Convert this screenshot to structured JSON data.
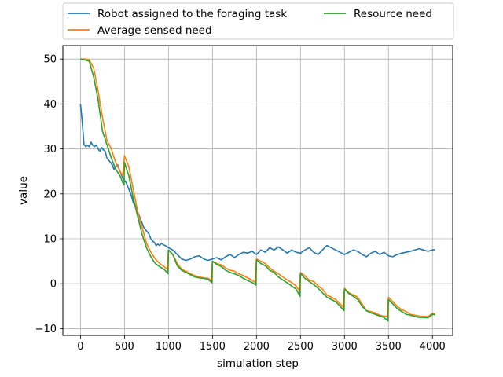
{
  "chart_data": {
    "type": "line",
    "xlabel": "simulation step",
    "ylabel": "value",
    "xlim": [
      -200,
      4230
    ],
    "ylim": [
      -11.5,
      53
    ],
    "x_ticks": [
      0,
      500,
      1000,
      1500,
      2000,
      2500,
      3000,
      3500,
      4000
    ],
    "y_ticks": [
      -10,
      0,
      10,
      20,
      30,
      40,
      50
    ],
    "grid": true,
    "legend_position": "top-outside, 2 columns",
    "series": [
      {
        "name": "Robot assigned to the foraging task",
        "color": "#1f77b4",
        "x": [
          0,
          20,
          40,
          60,
          80,
          100,
          120,
          140,
          160,
          180,
          200,
          220,
          240,
          260,
          280,
          300,
          320,
          340,
          360,
          380,
          400,
          420,
          440,
          460,
          480,
          500,
          520,
          540,
          560,
          580,
          600,
          620,
          640,
          660,
          680,
          700,
          720,
          740,
          760,
          780,
          800,
          820,
          840,
          860,
          880,
          900,
          920,
          940,
          960,
          980,
          1000,
          1050,
          1100,
          1150,
          1200,
          1250,
          1300,
          1350,
          1400,
          1450,
          1500,
          1550,
          1600,
          1650,
          1700,
          1750,
          1800,
          1850,
          1900,
          1950,
          2000,
          2050,
          2100,
          2150,
          2200,
          2250,
          2300,
          2350,
          2400,
          2450,
          2500,
          2550,
          2600,
          2650,
          2700,
          2750,
          2800,
          2850,
          2900,
          2950,
          3000,
          3050,
          3100,
          3150,
          3200,
          3250,
          3300,
          3350,
          3400,
          3450,
          3500,
          3550,
          3600,
          3650,
          3700,
          3750,
          3800,
          3850,
          3900,
          3950,
          4000,
          4030
        ],
        "values": [
          40,
          36,
          31,
          30.5,
          30.8,
          30.5,
          31.5,
          30.8,
          30.5,
          30.9,
          30,
          29.5,
          30.3,
          29.8,
          29.5,
          28,
          27.5,
          27,
          26.5,
          25.5,
          26,
          26.5,
          25.5,
          24.5,
          23.5,
          23,
          22.5,
          21.5,
          20.5,
          19.5,
          18,
          17.5,
          16.5,
          15.5,
          14.5,
          13.5,
          12.5,
          12,
          11.5,
          11,
          10,
          9.5,
          9.2,
          8.5,
          8.8,
          8.5,
          9,
          8.7,
          8.5,
          8.3,
          8,
          7.5,
          6.5,
          5.5,
          5.2,
          5.5,
          6,
          6.2,
          5.5,
          5.2,
          5.5,
          5.8,
          5.3,
          6,
          6.5,
          5.8,
          6.5,
          7,
          6.8,
          7.2,
          6.5,
          7.5,
          7,
          8,
          7.5,
          8.2,
          7.5,
          6.8,
          7.5,
          7,
          6.8,
          7.5,
          8,
          7,
          6.5,
          7.5,
          8.5,
          8,
          7.5,
          7,
          6.5,
          7,
          7.5,
          7.2,
          6.5,
          6,
          6.8,
          7.2,
          6.5,
          7,
          6.2,
          6,
          6.5,
          6.8,
          7,
          7.2,
          7.5,
          7.8,
          7.5,
          7.2,
          7.5,
          7.6
        ]
      },
      {
        "name": "Average sensed need",
        "color": "#ff7f0e",
        "x": [
          0,
          50,
          100,
          150,
          200,
          250,
          300,
          350,
          400,
          450,
          480,
          500,
          550,
          600,
          650,
          700,
          750,
          800,
          850,
          900,
          950,
          985,
          1000,
          1050,
          1100,
          1150,
          1200,
          1250,
          1300,
          1350,
          1400,
          1450,
          1485,
          1500,
          1550,
          1600,
          1650,
          1700,
          1750,
          1800,
          1850,
          1900,
          1950,
          1985,
          2000,
          2050,
          2100,
          2150,
          2200,
          2250,
          2300,
          2350,
          2400,
          2450,
          2485,
          2500,
          2550,
          2600,
          2650,
          2700,
          2750,
          2800,
          2850,
          2900,
          2950,
          2985,
          3000,
          3050,
          3100,
          3150,
          3200,
          3250,
          3300,
          3350,
          3400,
          3450,
          3485,
          3500,
          3550,
          3600,
          3650,
          3700,
          3750,
          3800,
          3850,
          3900,
          3950,
          4000,
          4030
        ],
        "values": [
          50,
          50,
          49.8,
          48,
          43,
          37,
          32,
          30,
          27,
          25,
          24,
          28.5,
          26,
          21,
          16,
          12.5,
          9,
          7,
          5.5,
          4.5,
          3.8,
          3.2,
          7.5,
          6.5,
          4.5,
          3.2,
          2.8,
          2.2,
          1.8,
          1.5,
          1.3,
          1.2,
          0.8,
          5,
          4.5,
          4.2,
          3.5,
          3,
          2.8,
          2.2,
          1.8,
          1.3,
          0.8,
          0.3,
          5.5,
          5,
          4.5,
          3.5,
          2.8,
          2.2,
          1.5,
          0.8,
          0.3,
          -0.5,
          -1.5,
          2.5,
          1.8,
          0.8,
          0.5,
          -0.5,
          -1.2,
          -2.5,
          -3,
          -3.5,
          -4.5,
          -5.2,
          -1,
          -2,
          -2.5,
          -3,
          -4.5,
          -6,
          -6.2,
          -6.5,
          -7,
          -7.2,
          -7.3,
          -3,
          -4,
          -5,
          -5.8,
          -6.2,
          -6.8,
          -7,
          -7.2,
          -7.3,
          -7.3,
          -6.6,
          -6.7
        ]
      },
      {
        "name": "Resource need",
        "color": "#2ca02c",
        "x": [
          0,
          50,
          100,
          150,
          200,
          250,
          300,
          350,
          400,
          450,
          480,
          495,
          500,
          550,
          600,
          650,
          700,
          750,
          800,
          850,
          900,
          950,
          985,
          995,
          1000,
          1050,
          1100,
          1150,
          1200,
          1250,
          1300,
          1350,
          1400,
          1450,
          1495,
          1500,
          1550,
          1600,
          1650,
          1700,
          1750,
          1800,
          1850,
          1900,
          1950,
          1995,
          2000,
          2050,
          2100,
          2150,
          2200,
          2250,
          2300,
          2350,
          2400,
          2450,
          2495,
          2500,
          2550,
          2600,
          2650,
          2700,
          2750,
          2800,
          2850,
          2900,
          2950,
          2995,
          3000,
          3050,
          3100,
          3150,
          3200,
          3250,
          3300,
          3350,
          3400,
          3450,
          3495,
          3500,
          3550,
          3600,
          3650,
          3700,
          3750,
          3800,
          3850,
          3900,
          3950,
          4000,
          4030
        ],
        "values": [
          50,
          49.8,
          49.5,
          46,
          41,
          34,
          31,
          28,
          25.5,
          24,
          22.5,
          22,
          27,
          24,
          19,
          15,
          11,
          8,
          6,
          4.5,
          3.8,
          3.2,
          2.5,
          2.2,
          7.5,
          6.5,
          4,
          3,
          2.5,
          2,
          1.5,
          1.3,
          1.2,
          1,
          0.2,
          5,
          4.3,
          3.8,
          3,
          2.5,
          2.2,
          1.8,
          1.2,
          0.7,
          0.3,
          -0.3,
          5.3,
          4.5,
          4,
          3,
          2.5,
          1.5,
          0.8,
          0.2,
          -0.5,
          -1.2,
          -2.8,
          2.3,
          1.2,
          0.5,
          -0.2,
          -1,
          -2,
          -3,
          -3.5,
          -4,
          -5,
          -6,
          -1.2,
          -2.2,
          -2.8,
          -3.5,
          -5,
          -6,
          -6.5,
          -6.8,
          -7.2,
          -7.5,
          -8.3,
          -3.5,
          -4.5,
          -5.5,
          -6.2,
          -6.8,
          -7,
          -7.3,
          -7.5,
          -7.5,
          -7.6,
          -6.8,
          -6.9
        ]
      }
    ]
  }
}
